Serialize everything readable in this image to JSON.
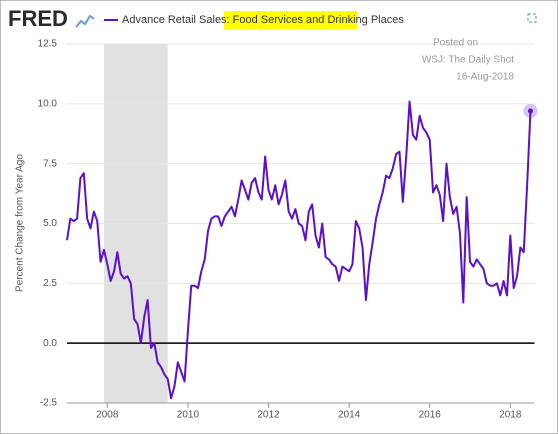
{
  "chart_data": {
    "type": "line",
    "brand": "FRED",
    "title_prefix": "Advance Retail Sales: ",
    "title_highlight": "Food Services and Drinking Places",
    "ylabel": "Percent Change from Year Ago",
    "annotations": [
      "Posted on",
      "WSJ: The Daily Shot",
      "16-Aug-2018"
    ],
    "x": [
      2007.0,
      2007.083,
      2007.167,
      2007.25,
      2007.333,
      2007.417,
      2007.5,
      2007.583,
      2007.667,
      2007.75,
      2007.833,
      2007.917,
      2008.0,
      2008.083,
      2008.167,
      2008.25,
      2008.333,
      2008.417,
      2008.5,
      2008.583,
      2008.667,
      2008.75,
      2008.833,
      2008.917,
      2009.0,
      2009.083,
      2009.167,
      2009.25,
      2009.333,
      2009.417,
      2009.5,
      2009.583,
      2009.667,
      2009.75,
      2009.833,
      2009.917,
      2010.0,
      2010.083,
      2010.167,
      2010.25,
      2010.333,
      2010.417,
      2010.5,
      2010.583,
      2010.667,
      2010.75,
      2010.833,
      2010.917,
      2011.0,
      2011.083,
      2011.167,
      2011.25,
      2011.333,
      2011.417,
      2011.5,
      2011.583,
      2011.667,
      2011.75,
      2011.833,
      2011.917,
      2012.0,
      2012.083,
      2012.167,
      2012.25,
      2012.333,
      2012.417,
      2012.5,
      2012.583,
      2012.667,
      2012.75,
      2012.833,
      2012.917,
      2013.0,
      2013.083,
      2013.167,
      2013.25,
      2013.333,
      2013.417,
      2013.5,
      2013.583,
      2013.667,
      2013.75,
      2013.833,
      2013.917,
      2014.0,
      2014.083,
      2014.167,
      2014.25,
      2014.333,
      2014.417,
      2014.5,
      2014.583,
      2014.667,
      2014.75,
      2014.833,
      2014.917,
      2015.0,
      2015.083,
      2015.167,
      2015.25,
      2015.333,
      2015.417,
      2015.5,
      2015.583,
      2015.667,
      2015.75,
      2015.833,
      2015.917,
      2016.0,
      2016.083,
      2016.167,
      2016.25,
      2016.333,
      2016.417,
      2016.5,
      2016.583,
      2016.667,
      2016.75,
      2016.833,
      2016.917,
      2017.0,
      2017.083,
      2017.167,
      2017.25,
      2017.333,
      2017.417,
      2017.5,
      2017.583,
      2017.667,
      2017.75,
      2017.833,
      2017.917,
      2018.0,
      2018.083,
      2018.167,
      2018.25,
      2018.333,
      2018.417,
      2018.5
    ],
    "series": [
      {
        "name": "Advance Retail Sales: Food Services and Drinking Places",
        "color": "#5c10c9",
        "values": [
          4.3,
          5.2,
          5.1,
          5.2,
          6.9,
          7.1,
          5.2,
          4.8,
          5.5,
          5.1,
          3.4,
          3.9,
          3.3,
          2.6,
          3.0,
          3.8,
          2.9,
          2.7,
          2.8,
          2.5,
          1.0,
          0.8,
          0.0,
          1.1,
          1.8,
          -0.2,
          0.0,
          -0.8,
          -1.0,
          -1.3,
          -1.5,
          -2.3,
          -1.8,
          -0.8,
          -1.2,
          -1.6,
          0.5,
          2.4,
          2.4,
          2.3,
          3.0,
          3.5,
          4.7,
          5.2,
          5.3,
          5.3,
          4.9,
          5.3,
          5.5,
          5.7,
          5.3,
          6.0,
          6.8,
          6.4,
          6.0,
          6.7,
          6.9,
          6.3,
          6.0,
          7.8,
          6.4,
          6.0,
          6.6,
          5.8,
          6.2,
          6.8,
          5.5,
          5.2,
          5.6,
          5.0,
          4.9,
          4.3,
          5.5,
          5.8,
          4.5,
          4.0,
          5.0,
          3.6,
          3.5,
          3.3,
          3.2,
          2.6,
          3.2,
          3.1,
          3.0,
          3.3,
          5.1,
          4.8,
          4.0,
          1.8,
          3.3,
          4.2,
          5.2,
          5.8,
          6.3,
          7.0,
          6.9,
          7.3,
          7.9,
          8.0,
          5.9,
          7.8,
          10.1,
          8.7,
          8.5,
          9.5,
          9.0,
          8.8,
          8.5,
          6.3,
          6.6,
          6.2,
          5.1,
          7.5,
          6.1,
          5.4,
          5.7,
          4.6,
          1.7,
          6.1,
          3.4,
          3.2,
          3.5,
          3.3,
          3.1,
          2.5,
          2.4,
          2.4,
          2.5,
          2.0,
          2.6,
          2.0,
          4.5,
          2.3,
          2.8,
          4.0,
          3.8,
          6.6,
          9.7
        ]
      }
    ],
    "recession": [
      2007.917,
      2009.5
    ],
    "xlim": [
      2007.0,
      2018.6
    ],
    "xticks": [
      2008,
      2010,
      2012,
      2014,
      2016,
      2018
    ],
    "ylim": [
      -2.5,
      12.5
    ],
    "yticks": [
      -2.5,
      {
        "value": 0,
        "label": "0.0"
      },
      2.5,
      {
        "value": 5,
        "label": "5.0"
      },
      7.5,
      {
        "value": 10,
        "label": "10.0"
      },
      12.5
    ],
    "grid": true
  }
}
